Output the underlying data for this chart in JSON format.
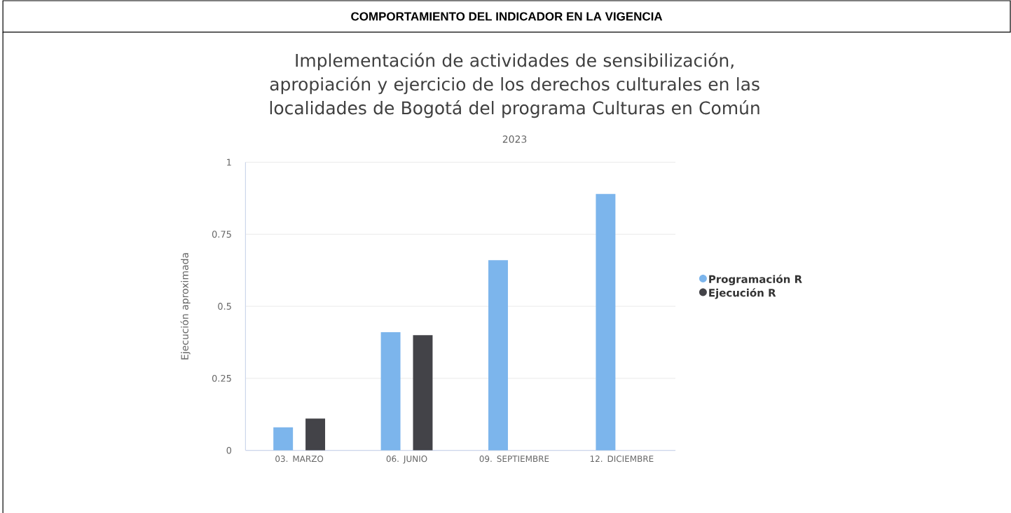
{
  "chart_data": {
    "type": "bar",
    "title": "Implementación de actividades de sensibilización, apropiación y ejercicio de los derechos culturales en las localidades de Bogotá del programa Culturas en Común",
    "subtitle": "2023",
    "ylabel": "Ejecución aproximada",
    "annotations": [
      "COMPORTAMIENTO DEL INDICADOR EN LA VIGENCIA"
    ],
    "categories": [
      "03. MARZO",
      "06. JUNIO",
      "09. SEPTIEMBRE",
      "12. DICIEMBRE"
    ],
    "series": [
      {
        "name": "Programación R",
        "color": "#7cb5ec",
        "values": [
          0.08,
          0.41,
          0.66,
          0.89
        ]
      },
      {
        "name": "Ejecución R",
        "color": "#434348",
        "values": [
          0.11,
          0.4,
          null,
          null
        ]
      }
    ],
    "ylim": [
      0,
      1
    ],
    "yticks": [
      0,
      0.25,
      0.5,
      0.75,
      1
    ],
    "grid": "y",
    "legend": "right"
  }
}
